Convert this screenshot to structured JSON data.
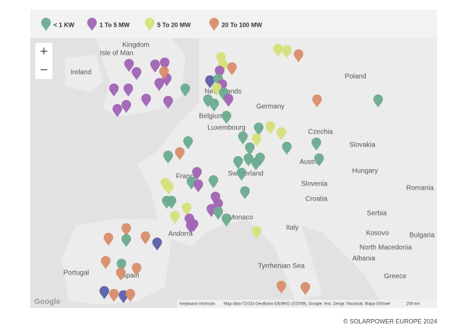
{
  "legend": {
    "items": [
      {
        "label": "< 1 KW",
        "color": "#6aab8e"
      },
      {
        "label": "1 To 5 MW",
        "color": "#a064b4"
      },
      {
        "label": "5 To 20 MW",
        "color": "#d6e07a"
      },
      {
        "label": "20 To 100 MW",
        "color": "#d98e6c"
      }
    ]
  },
  "map": {
    "labels": [
      "Isle of Man",
      "Kingdom",
      "Ireland",
      "Netherlands",
      "Germany",
      "Poland",
      "Belgium",
      "Luxembourg",
      "Czechia",
      "Slovakia",
      "Austria",
      "Hungary",
      "Switzerland",
      "France",
      "Slovenia",
      "Romania",
      "Croatia",
      "Serbia",
      "Monaco",
      "Italy",
      "Andorra",
      "Kosovo",
      "Bulgaria",
      "North Macedonia",
      "Albania",
      "Tyrrhenian Sea",
      "Portugal",
      "Spain",
      "Greece"
    ],
    "zoom_controls": [
      "+",
      "−"
    ],
    "logo": "Google",
    "shortcuts": "Keyboard shortcuts",
    "attribution": "Map data ©2024 GeoBasis-DE/BKG (©2009), Google, Inst. Geogr. Nacional, Mapa GISrael",
    "scale": "200 km"
  },
  "footer": {
    "copyright": "© SOLARPOWER EUROPE 2024"
  }
}
